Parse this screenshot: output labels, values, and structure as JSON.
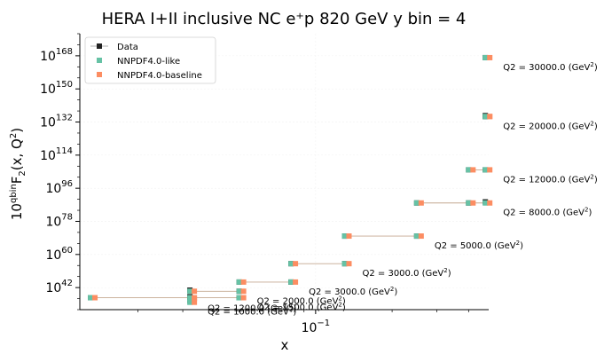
{
  "chart_data": {
    "type": "line",
    "title": "HERA I+II inclusive NC e⁺p 820 GeV y bin = 4",
    "xlabel": "x",
    "ylabel": "10^qbin F₂(x, Q²)",
    "xscale": "log",
    "xlim": [
      0.0118,
      0.48
    ],
    "yscale": "log",
    "ylim_exponent": [
      30,
      180
    ],
    "x_tick_labels": [
      {
        "value": 0.1,
        "label": "10^-1"
      }
    ],
    "y_tick_labels": [
      {
        "exponent": 42,
        "label": "10^42"
      },
      {
        "exponent": 60,
        "label": "10^60"
      },
      {
        "exponent": 78,
        "label": "10^78"
      },
      {
        "exponent": 96,
        "label": "10^96"
      },
      {
        "exponent": 114,
        "label": "10^114"
      },
      {
        "exponent": 132,
        "label": "10^132"
      },
      {
        "exponent": 150,
        "label": "10^150"
      },
      {
        "exponent": 168,
        "label": "10^168"
      }
    ],
    "legend": {
      "position": "top-left",
      "entries": [
        {
          "name": "Data",
          "color": "#222222",
          "marker": "square-with-line"
        },
        {
          "name": "NNPDF4.0-like",
          "color": "#66c2a5",
          "marker": "square"
        },
        {
          "name": "NNPDF4.0-baseline",
          "color": "#fc8d62",
          "marker": "square"
        }
      ]
    },
    "bins": [
      {
        "label": "Q2 = 1000.0 (GeV²)",
        "x": [
          0.032
        ],
        "log10_value": 34.0,
        "data_log10": [
          35.0
        ]
      },
      {
        "label": "Q2 = 1200.0 (GeV²)",
        "x": [
          0.032
        ],
        "log10_value": 36.0,
        "data_log10": [
          37.0
        ]
      },
      {
        "label": "Q2 = 1500.0 (GeV²)",
        "x": [
          0.013,
          0.032,
          0.05
        ],
        "log10_value": 36.5,
        "data_log10": [
          36.5,
          36.8,
          36.5
        ]
      },
      {
        "label": "Q2 = 2000.0 (GeV²)",
        "x": [
          0.032,
          0.05
        ],
        "log10_value": 40.0,
        "data_log10": [
          40.6,
          40.0
        ]
      },
      {
        "label": "Q2 = 3000.0 (GeV²)",
        "x": [
          0.05,
          0.08
        ],
        "log10_value": 45.0,
        "data_log10": [
          45.0,
          45.0
        ]
      },
      {
        "label": "Q2 = 3000.0 (GeV²)",
        "x": [
          0.08,
          0.13
        ],
        "log10_value": 55.0,
        "data_log10": [
          55.0,
          55.0
        ]
      },
      {
        "label": "Q2 = 5000.0 (GeV²)",
        "x": [
          0.13,
          0.25
        ],
        "log10_value": 70.0,
        "data_log10": [
          70.0,
          70.0
        ]
      },
      {
        "label": "Q2 = 8000.0 (GeV²)",
        "x": [
          0.25,
          0.4,
          0.65
        ],
        "log10_value": 88.0,
        "data_log10": [
          88.0,
          88.0,
          88.6
        ]
      },
      {
        "label": "Q2 = 12000.0 (GeV²)",
        "x": [
          0.4,
          0.65
        ],
        "log10_value": 106.0,
        "data_log10": [
          106.0,
          106.0
        ]
      },
      {
        "label": "Q2 = 20000.0 (GeV²)",
        "x": [
          0.65,
          0.65
        ],
        "log10_value": 135.0,
        "data_log10": [
          135.5,
          135.0
        ]
      },
      {
        "label": "Q2 = 30000.0 (GeV²)",
        "x": [
          0.65
        ],
        "log10_value": 167.0,
        "data_log10": [
          167.0
        ]
      }
    ]
  }
}
